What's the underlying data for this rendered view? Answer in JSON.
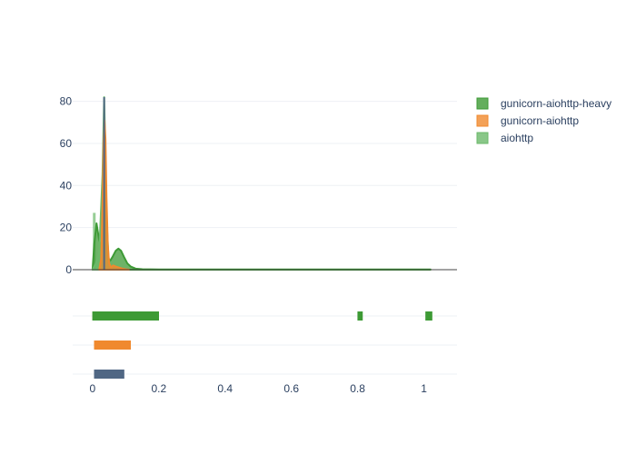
{
  "chart_data": {
    "type": "area",
    "subtype": "distplot",
    "title": "",
    "xlabel": "",
    "ylabel": "",
    "xlim": [
      -0.06,
      1.1
    ],
    "ylim": [
      0,
      85
    ],
    "grid": true,
    "legend_position": "right",
    "x_ticks": [
      0,
      0.2,
      0.4,
      0.6,
      0.8,
      1
    ],
    "x_tick_labels": [
      "0",
      "0.2",
      "0.4",
      "0.6",
      "0.8",
      "1"
    ],
    "y_ticks": [
      0,
      20,
      40,
      60,
      80
    ],
    "y_tick_labels": [
      "0",
      "20",
      "40",
      "60",
      "80"
    ],
    "series": [
      {
        "name": "gunicorn-aiohttp-heavy",
        "color": "#3d9a35",
        "x": [
          0.0,
          0.005,
          0.012,
          0.02,
          0.028,
          0.034,
          0.04,
          0.046,
          0.052,
          0.06,
          0.07,
          0.078,
          0.086,
          0.095,
          0.105,
          0.115,
          0.13,
          0.15,
          0.2,
          0.5,
          0.8,
          1.02
        ],
        "y": [
          0,
          12,
          22,
          14,
          10,
          40,
          22,
          5,
          4,
          6,
          9,
          10,
          9,
          6,
          3,
          1.5,
          0.5,
          0.2,
          0.1,
          0.1,
          0.1,
          0.1
        ],
        "rug": [
          0.005,
          0.02,
          0.04,
          0.06,
          0.08,
          0.1,
          0.12,
          0.13,
          0.148,
          0.16,
          0.17,
          0.18,
          0.195,
          0.805,
          0.81,
          1.01,
          1.02
        ]
      },
      {
        "name": "gunicorn-aiohttp",
        "color": "#f0892e",
        "x": [
          0.02,
          0.026,
          0.03,
          0.033,
          0.036,
          0.039,
          0.042,
          0.046,
          0.05,
          0.056,
          0.062,
          0.07,
          0.08,
          0.09,
          0.1,
          0.11
        ],
        "y": [
          0,
          5,
          30,
          60,
          71,
          62,
          35,
          12,
          3,
          1,
          2,
          1.5,
          1,
          0.5,
          0.2,
          0
        ],
        "rug": [
          0.01,
          0.02,
          0.03,
          0.04,
          0.05,
          0.06,
          0.07,
          0.08,
          0.09,
          0.1,
          0.11
        ]
      },
      {
        "name": "aiohttp",
        "color": "#6bb96a",
        "x": [
          0.0,
          0.01,
          0.02,
          0.03,
          0.035,
          0.038,
          0.042,
          0.048,
          0.055,
          0.065,
          0.075,
          0.085,
          0.095
        ],
        "y": [
          0,
          3,
          8,
          45,
          82,
          60,
          25,
          6,
          1,
          0.5,
          0.2,
          0.1,
          0
        ],
        "histogram_x": [
          0.005
        ],
        "histogram_y": [
          27
        ],
        "rug": [
          0.01,
          0.02,
          0.03,
          0.04,
          0.05,
          0.06,
          0.07,
          0.08,
          0.09
        ]
      }
    ]
  },
  "legend": {
    "items": [
      {
        "label": "gunicorn-aiohttp-heavy",
        "color": "#3d9a35"
      },
      {
        "label": "gunicorn-aiohttp",
        "color": "#f0892e"
      },
      {
        "label": "aiohttp",
        "color": "#6bb96a"
      }
    ]
  }
}
